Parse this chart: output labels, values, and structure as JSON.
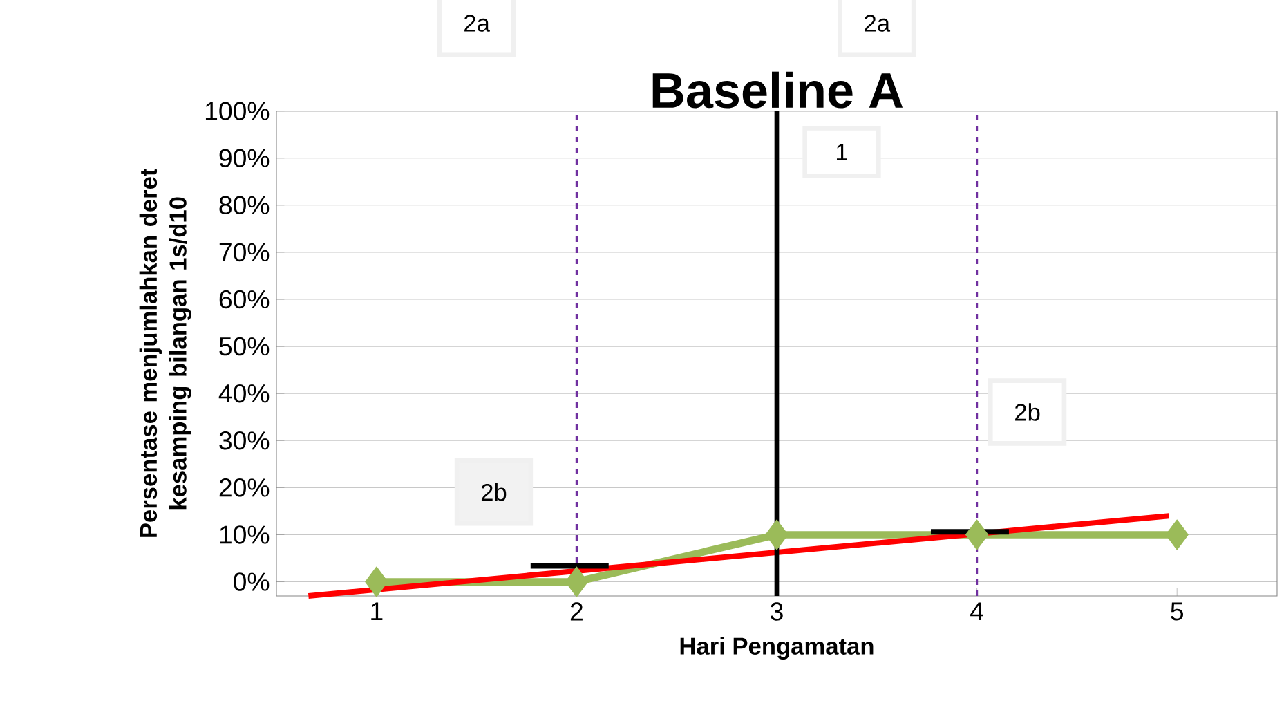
{
  "chart_data": {
    "type": "line",
    "title": "Baseline A",
    "xlabel": "Hari Pengamatan",
    "ylabel": "Persentase menjumlahkan  deret kesamping   bilangan 1s/d10",
    "x": [
      1,
      2,
      3,
      4,
      5
    ],
    "xlim": [
      0.5,
      5.5
    ],
    "xticks": [
      1,
      2,
      3,
      4,
      5
    ],
    "ylim": [
      -3,
      100
    ],
    "yticks": [
      {
        "value": 0,
        "label": "0%"
      },
      {
        "value": 10,
        "label": "10%"
      },
      {
        "value": 20,
        "label": "20%"
      },
      {
        "value": 30,
        "label": "30%"
      },
      {
        "value": 40,
        "label": "40%"
      },
      {
        "value": 50,
        "label": "50%"
      },
      {
        "value": 60,
        "label": "60%"
      },
      {
        "value": 70,
        "label": "70%"
      },
      {
        "value": 80,
        "label": "80%"
      },
      {
        "value": 90,
        "label": "90%"
      },
      {
        "value": 100,
        "label": "100%"
      }
    ],
    "grid": "y",
    "series": [
      {
        "color": "#9bbb59",
        "values": [
          0,
          0,
          10,
          10,
          10
        ],
        "marker": "diamond"
      },
      {
        "type": "line",
        "color": "#ff0000",
        "x": [
          0.66,
          4.96
        ],
        "values": [
          -3,
          14
        ],
        "marker": "none"
      },
      {
        "type": "line",
        "color": "#000000",
        "x": [
          1.77,
          2.16
        ],
        "values": [
          3.4,
          3.4
        ],
        "marker": "none"
      },
      {
        "type": "line",
        "color": "#000000",
        "x": [
          3.77,
          4.16
        ],
        "values": [
          10.6,
          10.6
        ],
        "marker": "none"
      }
    ],
    "ref_lines": [
      {
        "axis": "x",
        "value": 2,
        "color": "#7030a0",
        "line_style": "dashed"
      },
      {
        "axis": "x",
        "value": 3,
        "color": "#000000",
        "line_style": "solid"
      },
      {
        "axis": "x",
        "value": 4,
        "color": "#7030a0",
        "line_style": "dashed"
      }
    ],
    "annotations": [
      "2a",
      "1",
      "2a",
      "2b",
      "2b"
    ]
  }
}
